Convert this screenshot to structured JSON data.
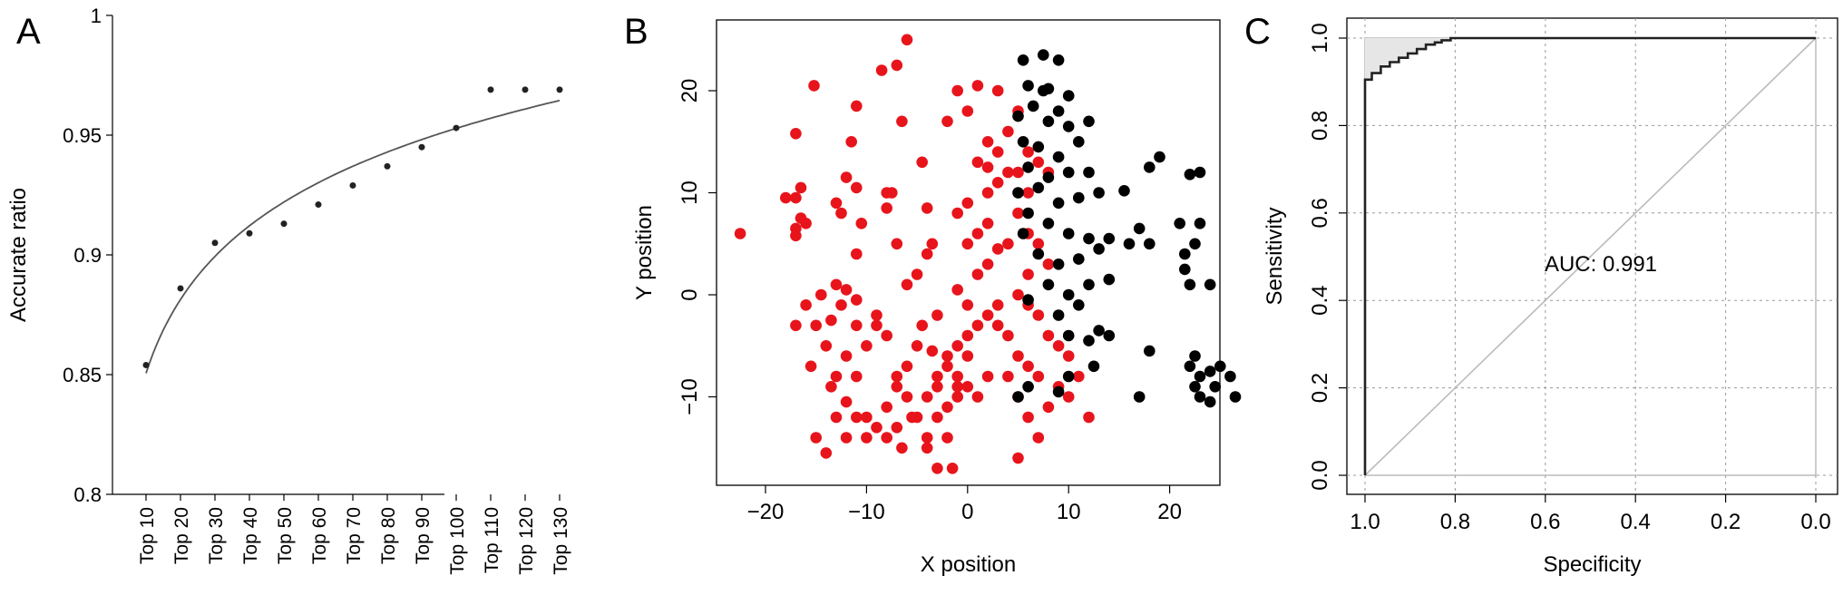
{
  "panels": {
    "a": "A",
    "b": "B",
    "c": "C"
  },
  "colors": {
    "group1": "#e8141b",
    "group2": "#000000",
    "axis": "#000000",
    "fit": "#555555",
    "diag": "#bbbbbb",
    "shade": "#e6e6e6",
    "grid": "#9a9a9a"
  },
  "chart_data": [
    {
      "type": "scatter",
      "panel": "A",
      "xlabel": "",
      "ylabel": "Accurate ratio",
      "categories": [
        "Top 10",
        "Top 20",
        "Top 30",
        "Top 40",
        "Top 50",
        "Top 60",
        "Top 70",
        "Top 80",
        "Top 90",
        "Top 100",
        "Top 110",
        "Top 120",
        "Top 130"
      ],
      "values": [
        0.854,
        0.886,
        0.905,
        0.909,
        0.913,
        0.921,
        0.929,
        0.937,
        0.945,
        0.953,
        0.969,
        0.969,
        0.969
      ],
      "fit_line": "logarithmic",
      "ylim": [
        0.8,
        1.0
      ],
      "yticks": [
        0.8,
        0.85,
        0.9,
        0.95,
        1.0
      ],
      "ytick_labels": [
        "0.8",
        "0.85",
        "0.9",
        "0.95",
        "1"
      ]
    },
    {
      "type": "scatter",
      "panel": "B",
      "xlabel": "X position",
      "ylabel": "Y position",
      "xlim": [
        -24,
        27
      ],
      "ylim": [
        -18,
        26
      ],
      "xticks": [
        -20,
        -10,
        0,
        10,
        20
      ],
      "xtick_labels": [
        "−20",
        "−10",
        "0",
        "10",
        "20"
      ],
      "yticks": [
        -10,
        0,
        10,
        20
      ],
      "ytick_labels": [
        "−10",
        "0",
        "10",
        "20"
      ],
      "series": [
        {
          "color": "red",
          "points": [
            [
              -22.5,
              6
            ],
            [
              -18,
              9.5
            ],
            [
              -17,
              9.5
            ],
            [
              -16.5,
              10.5
            ],
            [
              -17,
              6.5
            ],
            [
              -17,
              5.8
            ],
            [
              -16.5,
              7.5
            ],
            [
              -16,
              7
            ],
            [
              -17,
              15.8
            ],
            [
              -15.2,
              20.5
            ],
            [
              -13,
              9
            ],
            [
              -12,
              11.5
            ],
            [
              -12.5,
              8
            ],
            [
              -11,
              10.5
            ],
            [
              -11.5,
              15
            ],
            [
              -11,
              18.5
            ],
            [
              -10.5,
              7
            ],
            [
              -11,
              4
            ],
            [
              -8,
              10
            ],
            [
              -7.5,
              10
            ],
            [
              -8,
              8.5
            ],
            [
              -7,
              5
            ],
            [
              -8.5,
              22
            ],
            [
              -6,
              25
            ],
            [
              -7,
              22.5
            ],
            [
              -4.5,
              13
            ],
            [
              -4,
              8.5
            ],
            [
              -6.5,
              17
            ],
            [
              -3.5,
              5
            ],
            [
              -4,
              4
            ],
            [
              -5,
              2
            ],
            [
              -6,
              1
            ],
            [
              -3,
              -2
            ],
            [
              -4.5,
              -3
            ],
            [
              -5,
              -5
            ],
            [
              -3.5,
              -5.5
            ],
            [
              -2,
              -7
            ],
            [
              -1,
              -8
            ],
            [
              0,
              -9
            ],
            [
              -1,
              -10
            ],
            [
              -3,
              -12
            ],
            [
              -2,
              -14
            ],
            [
              -3,
              -17
            ],
            [
              -1.5,
              -17
            ],
            [
              -4,
              -14
            ],
            [
              -5,
              -12
            ],
            [
              -6,
              -10
            ],
            [
              -7,
              -9
            ],
            [
              -8,
              -11
            ],
            [
              -9,
              -13
            ],
            [
              -10,
              -14
            ],
            [
              -11,
              -12
            ],
            [
              -12,
              -10.5
            ],
            [
              -13,
              -12
            ],
            [
              -14,
              -15.5
            ],
            [
              -15,
              -14
            ],
            [
              -13,
              -8
            ],
            [
              -12,
              -6
            ],
            [
              -14,
              -5
            ],
            [
              -15,
              -3
            ],
            [
              -17,
              -3
            ],
            [
              -16,
              -1
            ],
            [
              -14.5,
              0
            ],
            [
              -13,
              1
            ],
            [
              -12,
              0.5
            ],
            [
              -11,
              -0.5
            ],
            [
              -12.5,
              -1
            ],
            [
              -13.5,
              -2.5
            ],
            [
              -11,
              -3
            ],
            [
              -9,
              -2
            ],
            [
              -10,
              -5
            ],
            [
              -11,
              -8
            ],
            [
              -10,
              -12
            ],
            [
              -8,
              -14
            ],
            [
              -6.5,
              -15
            ],
            [
              -5.5,
              -12
            ],
            [
              -4,
              -10
            ],
            [
              -3,
              -8
            ],
            [
              -2,
              -6
            ],
            [
              -1,
              -5
            ],
            [
              0,
              -4
            ],
            [
              1,
              -3
            ],
            [
              2,
              -2
            ],
            [
              3,
              -1
            ],
            [
              0,
              -1
            ],
            [
              -1,
              0.5
            ],
            [
              1,
              2
            ],
            [
              2,
              3
            ],
            [
              3,
              4.5
            ],
            [
              4,
              5
            ],
            [
              0,
              5
            ],
            [
              1,
              6
            ],
            [
              2,
              7
            ],
            [
              -1,
              8
            ],
            [
              0,
              9
            ],
            [
              2,
              10
            ],
            [
              3,
              11
            ],
            [
              4,
              12
            ],
            [
              2,
              12.5
            ],
            [
              1,
              13
            ],
            [
              3,
              14
            ],
            [
              4,
              16
            ],
            [
              5,
              18
            ],
            [
              3,
              20
            ],
            [
              1,
              20.5
            ],
            [
              -1,
              20
            ],
            [
              0,
              18
            ],
            [
              -2,
              17
            ],
            [
              2,
              15
            ],
            [
              5,
              12
            ],
            [
              6,
              14
            ],
            [
              7,
              13
            ],
            [
              8,
              12
            ],
            [
              6,
              10
            ],
            [
              5,
              8
            ],
            [
              6,
              6
            ],
            [
              7,
              5
            ],
            [
              8,
              3
            ],
            [
              6,
              2
            ],
            [
              5,
              0
            ],
            [
              6,
              -1
            ],
            [
              7,
              -2
            ],
            [
              8,
              -4
            ],
            [
              9,
              -5
            ],
            [
              10,
              -6
            ],
            [
              11,
              -8
            ],
            [
              9,
              -9
            ],
            [
              7,
              -8
            ],
            [
              6,
              -7
            ],
            [
              5,
              -6
            ],
            [
              4,
              -8
            ],
            [
              5,
              -10
            ],
            [
              6,
              -12
            ],
            [
              7,
              -14
            ],
            [
              5,
              -16
            ],
            [
              8,
              -11
            ],
            [
              10,
              -10
            ],
            [
              12,
              -12
            ],
            [
              -1,
              -9
            ],
            [
              0,
              -6
            ],
            [
              1,
              -10
            ],
            [
              2,
              -8
            ],
            [
              -2,
              -11
            ],
            [
              3,
              -3
            ],
            [
              4,
              -4
            ],
            [
              -3,
              -9
            ],
            [
              -6,
              -7
            ],
            [
              -7,
              -8
            ],
            [
              -8,
              -4
            ],
            [
              -9,
              -3
            ],
            [
              -15.5,
              -7
            ],
            [
              -13.5,
              -9
            ],
            [
              -12,
              -14
            ],
            [
              -7,
              -13
            ],
            [
              -4,
              -15
            ]
          ]
        },
        {
          "color": "black",
          "points": [
            [
              5.5,
              23
            ],
            [
              7.5,
              23.5
            ],
            [
              9,
              23
            ],
            [
              6,
              20.5
            ],
            [
              7.5,
              20
            ],
            [
              8,
              20.2
            ],
            [
              10,
              19.5
            ],
            [
              6.5,
              18.5
            ],
            [
              9,
              18
            ],
            [
              5,
              17.5
            ],
            [
              8,
              17
            ],
            [
              10,
              16.5
            ],
            [
              12,
              17
            ],
            [
              5.5,
              15
            ],
            [
              7,
              14.5
            ],
            [
              9,
              13.5
            ],
            [
              11,
              15
            ],
            [
              6,
              12.5
            ],
            [
              8,
              11.5
            ],
            [
              10,
              12
            ],
            [
              12,
              12
            ],
            [
              5,
              10
            ],
            [
              7,
              10.5
            ],
            [
              9,
              9
            ],
            [
              11,
              9.5
            ],
            [
              13,
              10
            ],
            [
              15.5,
              10.2
            ],
            [
              18,
              12.5
            ],
            [
              19,
              13.5
            ],
            [
              22,
              11.8
            ],
            [
              23,
              12
            ],
            [
              6,
              8
            ],
            [
              8,
              7
            ],
            [
              10,
              6
            ],
            [
              12,
              5.5
            ],
            [
              14,
              5.5
            ],
            [
              16,
              5
            ],
            [
              17,
              6.5
            ],
            [
              18,
              5
            ],
            [
              21,
              7
            ],
            [
              23,
              7
            ],
            [
              5.5,
              6
            ],
            [
              7,
              4
            ],
            [
              9,
              3
            ],
            [
              11,
              3.5
            ],
            [
              13,
              4.5
            ],
            [
              8,
              1
            ],
            [
              10,
              0
            ],
            [
              12,
              1
            ],
            [
              14,
              1.5
            ],
            [
              6,
              -0.5
            ],
            [
              9,
              -2
            ],
            [
              11,
              -1
            ],
            [
              13,
              -3.5
            ],
            [
              10,
              -4
            ],
            [
              12,
              -4.5
            ],
            [
              14,
              -4
            ],
            [
              18,
              -5.5
            ],
            [
              22,
              -7
            ],
            [
              22.5,
              -6
            ],
            [
              23,
              -8
            ],
            [
              24,
              -7.5
            ],
            [
              25,
              -7
            ],
            [
              26,
              -8
            ],
            [
              24.5,
              -9
            ],
            [
              22.5,
              -9
            ],
            [
              23,
              -10
            ],
            [
              26.5,
              -10
            ],
            [
              24,
              -10.5
            ],
            [
              17,
              -10
            ],
            [
              5,
              -10
            ],
            [
              12.5,
              -7
            ],
            [
              10,
              -8
            ],
            [
              9,
              -9.5
            ],
            [
              6,
              -9
            ],
            [
              21.5,
              4
            ],
            [
              22.5,
              5
            ],
            [
              21.5,
              2.5
            ],
            [
              22,
              1
            ],
            [
              24,
              1
            ]
          ]
        }
      ]
    },
    {
      "type": "line",
      "panel": "C",
      "xlabel": "Specificity",
      "ylabel": "Sensitivity",
      "xlim": [
        1.0,
        0.0
      ],
      "ylim": [
        0.0,
        1.0
      ],
      "xticks": [
        1.0,
        0.8,
        0.6,
        0.4,
        0.2,
        0.0
      ],
      "xtick_labels": [
        "1.0",
        "0.8",
        "0.6",
        "0.4",
        "0.2",
        "0.0"
      ],
      "yticks": [
        0.0,
        0.2,
        0.4,
        0.6,
        0.8,
        1.0
      ],
      "ytick_labels": [
        "0.0",
        "0.2",
        "0.4",
        "0.6",
        "0.8",
        "1.0"
      ],
      "annotation": "AUC: 0.991",
      "grid": true,
      "roc": [
        [
          1.0,
          0.0
        ],
        [
          1.0,
          0.905
        ],
        [
          0.985,
          0.905
        ],
        [
          0.985,
          0.92
        ],
        [
          0.965,
          0.92
        ],
        [
          0.965,
          0.935
        ],
        [
          0.945,
          0.935
        ],
        [
          0.945,
          0.945
        ],
        [
          0.925,
          0.945
        ],
        [
          0.925,
          0.955
        ],
        [
          0.905,
          0.955
        ],
        [
          0.905,
          0.965
        ],
        [
          0.885,
          0.965
        ],
        [
          0.885,
          0.975
        ],
        [
          0.865,
          0.975
        ],
        [
          0.865,
          0.985
        ],
        [
          0.845,
          0.985
        ],
        [
          0.845,
          0.99
        ],
        [
          0.83,
          0.99
        ],
        [
          0.83,
          0.995
        ],
        [
          0.81,
          0.995
        ],
        [
          0.81,
          1.0
        ],
        [
          0.0,
          1.0
        ]
      ]
    }
  ]
}
